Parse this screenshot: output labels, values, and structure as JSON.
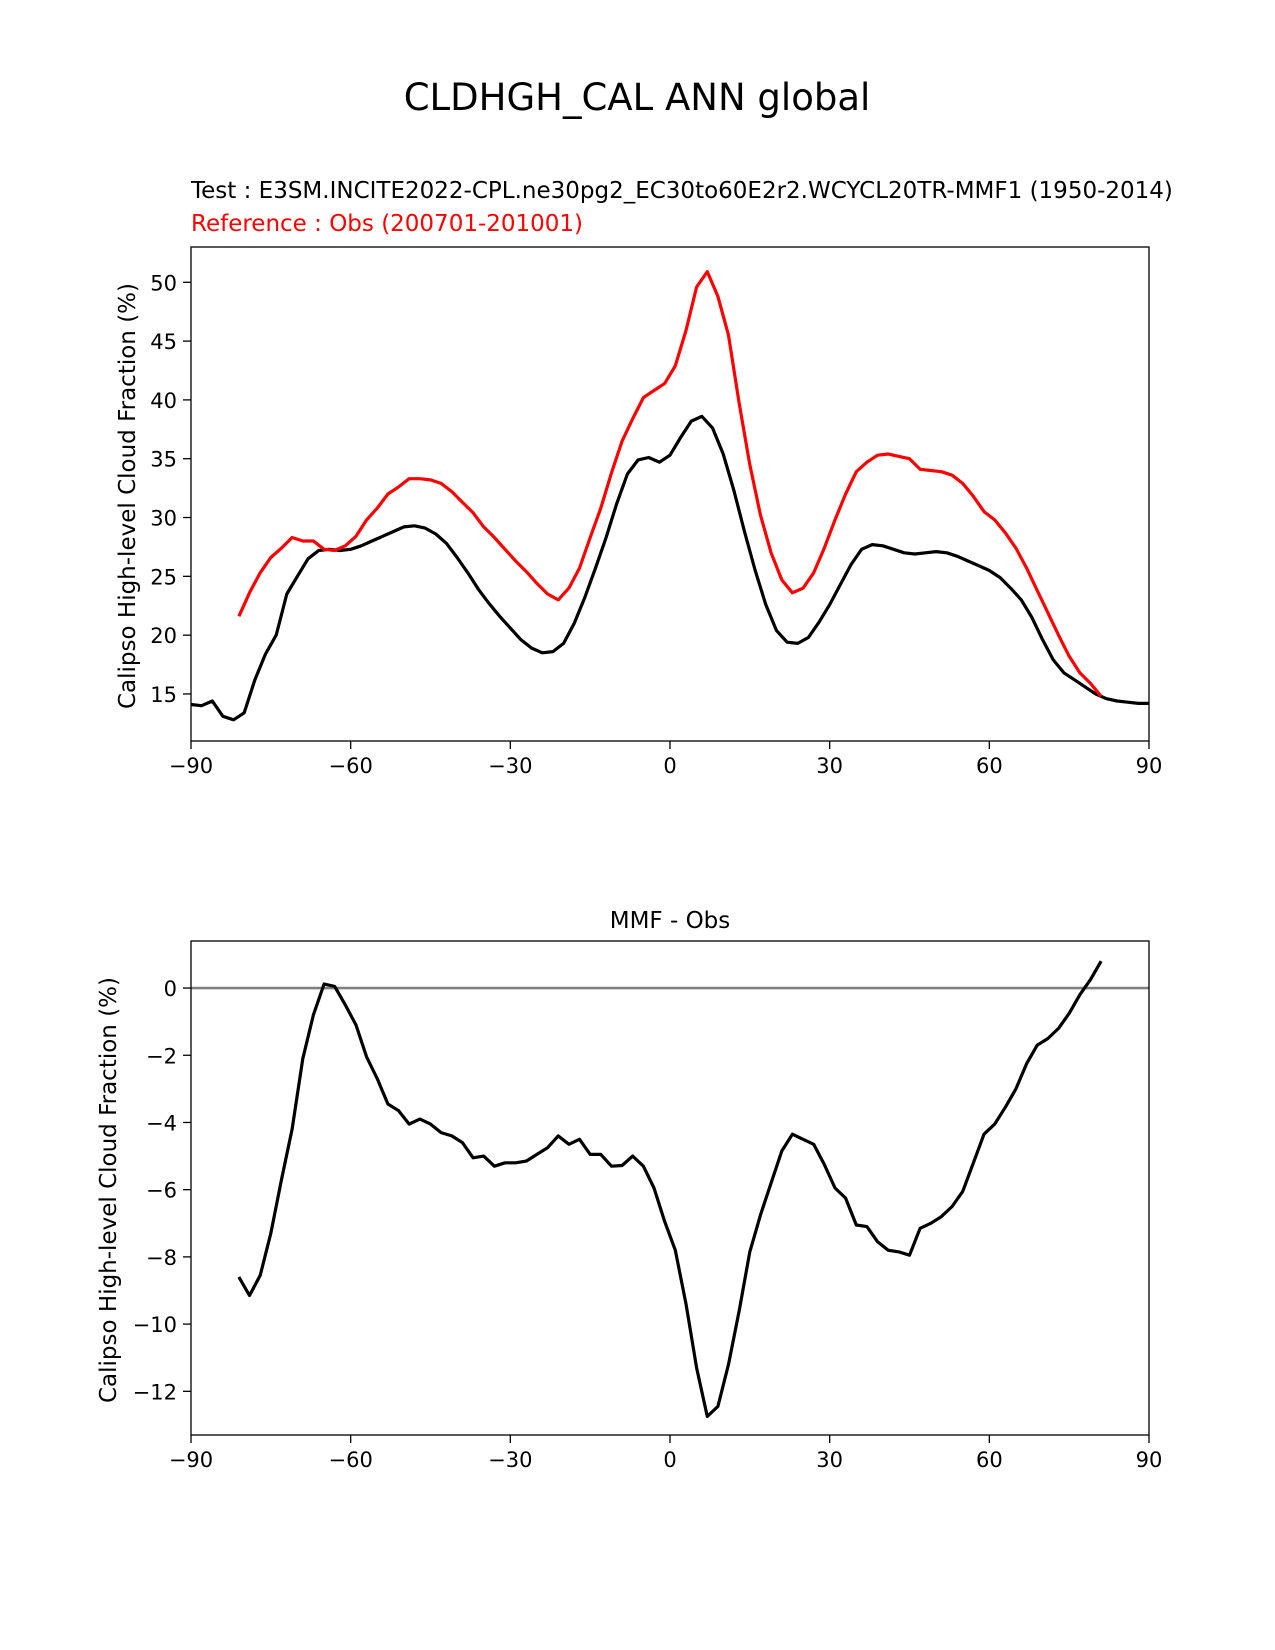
{
  "figure": {
    "title": "CLDHGH_CAL ANN global"
  },
  "chart_data": [
    {
      "type": "line",
      "subtitle_test": "Test : E3SM.INCITE2022-CPL.ne30pg2_EC30to60E2r2.WCYCL20TR-MMF1 (1950-2014)",
      "subtitle_reference": "Reference : Obs (200701-201001)",
      "xlabel": "",
      "ylabel": "Calipso High-level Cloud Fraction (%)",
      "xlim": [
        -90,
        90
      ],
      "ylim": [
        11,
        53
      ],
      "xticks": [
        -90,
        -60,
        -30,
        0,
        30,
        60,
        90
      ],
      "xtick_labels": [
        "−90",
        "−60",
        "−30",
        "0",
        "30",
        "60",
        "90"
      ],
      "yticks": [
        15,
        20,
        25,
        30,
        35,
        40,
        45,
        50
      ],
      "ytick_labels": [
        "15",
        "20",
        "25",
        "30",
        "35",
        "40",
        "45",
        "50"
      ],
      "series": [
        {
          "name": "Test (MMF)",
          "color": "#000000",
          "x": [
            -90,
            -88,
            -86,
            -84,
            -82,
            -80,
            -78,
            -76,
            -74,
            -72,
            -70,
            -68,
            -66,
            -64,
            -62,
            -60,
            -58,
            -56,
            -54,
            -52,
            -50,
            -48,
            -46,
            -44,
            -42,
            -40,
            -38,
            -36,
            -34,
            -32,
            -30,
            -28,
            -26,
            -24,
            -22,
            -20,
            -18,
            -16,
            -14,
            -12,
            -10,
            -8,
            -6,
            -4,
            -2,
            0,
            2,
            4,
            6,
            8,
            10,
            12,
            14,
            16,
            18,
            20,
            22,
            24,
            26,
            28,
            30,
            32,
            34,
            36,
            38,
            40,
            42,
            44,
            46,
            48,
            50,
            52,
            54,
            56,
            58,
            60,
            62,
            64,
            66,
            68,
            70,
            72,
            74,
            76,
            78,
            80,
            82,
            84,
            86,
            88,
            90
          ],
          "values": [
            14.1,
            14.0,
            14.4,
            13.1,
            12.8,
            13.4,
            16.2,
            18.4,
            20.0,
            23.5,
            25.0,
            26.5,
            27.2,
            27.3,
            27.2,
            27.3,
            27.6,
            28.0,
            28.4,
            28.8,
            29.2,
            29.3,
            29.1,
            28.6,
            27.8,
            26.6,
            25.3,
            23.9,
            22.7,
            21.6,
            20.6,
            19.6,
            18.9,
            18.5,
            18.6,
            19.3,
            21.0,
            23.2,
            25.7,
            28.3,
            31.2,
            33.7,
            34.9,
            35.1,
            34.7,
            35.3,
            36.8,
            38.2,
            38.6,
            37.6,
            35.4,
            32.3,
            28.8,
            25.5,
            22.6,
            20.4,
            19.4,
            19.3,
            19.8,
            21.1,
            22.6,
            24.3,
            26.0,
            27.3,
            27.7,
            27.6,
            27.3,
            27.0,
            26.9,
            27.0,
            27.1,
            27.0,
            26.7,
            26.3,
            25.9,
            25.5,
            24.9,
            24.0,
            23.0,
            21.5,
            19.6,
            17.9,
            16.8,
            16.2,
            15.6,
            15.0,
            14.6,
            14.4,
            14.3,
            14.2,
            14.2
          ]
        },
        {
          "name": "Reference (Obs)",
          "color": "#ff0000",
          "x": [
            -81,
            -79,
            -77,
            -75,
            -73,
            -71,
            -69,
            -67,
            -65,
            -63,
            -61,
            -59,
            -57,
            -55,
            -53,
            -51,
            -49,
            -47,
            -45,
            -43,
            -41,
            -39,
            -37,
            -35,
            -33,
            -31,
            -29,
            -27,
            -25,
            -23,
            -21,
            -19,
            -17,
            -15,
            -13,
            -11,
            -9,
            -7,
            -5,
            -3,
            -1,
            1,
            3,
            5,
            7,
            9,
            11,
            13,
            15,
            17,
            19,
            21,
            23,
            25,
            27,
            29,
            31,
            33,
            35,
            37,
            39,
            41,
            43,
            45,
            47,
            49,
            51,
            53,
            55,
            57,
            59,
            61,
            63,
            65,
            67,
            69,
            71,
            73,
            75,
            77,
            79,
            81
          ],
          "values": [
            21.6,
            23.6,
            25.3,
            26.6,
            27.4,
            28.3,
            28.0,
            28.0,
            27.3,
            27.2,
            27.6,
            28.4,
            29.8,
            30.8,
            32.0,
            32.6,
            33.3,
            33.3,
            33.2,
            32.9,
            32.2,
            31.3,
            30.4,
            29.2,
            28.3,
            27.3,
            26.3,
            25.4,
            24.4,
            23.5,
            23.0,
            24.0,
            25.7,
            28.3,
            30.8,
            33.8,
            36.5,
            38.4,
            40.2,
            40.8,
            41.4,
            42.9,
            45.9,
            49.6,
            50.9,
            48.8,
            45.5,
            39.7,
            34.5,
            30.2,
            27.0,
            24.7,
            23.6,
            24.0,
            25.3,
            27.4,
            29.8,
            32.0,
            33.9,
            34.7,
            35.3,
            35.4,
            35.2,
            35.0,
            34.1,
            34.0,
            33.9,
            33.6,
            32.9,
            31.8,
            30.5,
            29.8,
            28.7,
            27.4,
            25.7,
            23.8,
            21.9,
            20.0,
            18.2,
            16.8,
            15.9,
            14.8
          ]
        }
      ]
    },
    {
      "type": "line",
      "title": "MMF - Obs",
      "xlabel": "",
      "ylabel": "Calipso High-level Cloud Fraction (%)",
      "xlim": [
        -90,
        90
      ],
      "ylim": [
        -13.3,
        1.4
      ],
      "xticks": [
        -90,
        -60,
        -30,
        0,
        30,
        60,
        90
      ],
      "xtick_labels": [
        "−90",
        "−60",
        "−30",
        "0",
        "30",
        "60",
        "90"
      ],
      "yticks": [
        -12,
        -10,
        -8,
        -6,
        -4,
        -2,
        0
      ],
      "ytick_labels": [
        "−12",
        "−10",
        "−8",
        "−6",
        "−4",
        "−2",
        "0"
      ],
      "zero_line": {
        "y": 0,
        "color": "#808080"
      },
      "series": [
        {
          "name": "MMF - Obs",
          "color": "#000000",
          "x": [
            -81,
            -79,
            -77,
            -75,
            -73,
            -71,
            -69,
            -67,
            -65,
            -63,
            -61,
            -59,
            -57,
            -55,
            -53,
            -51,
            -49,
            -47,
            -45,
            -43,
            -41,
            -39,
            -37,
            -35,
            -33,
            -31,
            -29,
            -27,
            -25,
            -23,
            -21,
            -19,
            -17,
            -15,
            -13,
            -11,
            -9,
            -7,
            -5,
            -3,
            -1,
            1,
            3,
            5,
            7,
            9,
            11,
            13,
            15,
            17,
            19,
            21,
            23,
            25,
            27,
            29,
            31,
            33,
            35,
            37,
            39,
            41,
            43,
            45,
            47,
            49,
            51,
            53,
            55,
            57,
            59,
            61,
            63,
            65,
            67,
            69,
            71,
            73,
            75,
            77,
            79,
            81
          ],
          "values": [
            -8.6,
            -9.15,
            -8.55,
            -7.3,
            -5.7,
            -4.2,
            -2.1,
            -0.8,
            0.12,
            0.05,
            -0.5,
            -1.1,
            -2.05,
            -2.7,
            -3.45,
            -3.65,
            -4.05,
            -3.9,
            -4.05,
            -4.3,
            -4.4,
            -4.6,
            -5.05,
            -5.0,
            -5.3,
            -5.2,
            -5.2,
            -5.15,
            -4.95,
            -4.75,
            -4.4,
            -4.65,
            -4.5,
            -4.95,
            -4.95,
            -5.3,
            -5.28,
            -5.0,
            -5.3,
            -5.95,
            -6.95,
            -7.8,
            -9.4,
            -11.3,
            -12.75,
            -12.45,
            -11.2,
            -9.6,
            -7.85,
            -6.75,
            -5.8,
            -4.85,
            -4.35,
            -4.5,
            -4.65,
            -5.25,
            -5.95,
            -6.25,
            -7.05,
            -7.1,
            -7.55,
            -7.8,
            -7.85,
            -7.95,
            -7.15,
            -7.0,
            -6.8,
            -6.5,
            -6.05,
            -5.2,
            -4.35,
            -4.05,
            -3.55,
            -3.0,
            -2.25,
            -1.7,
            -1.5,
            -1.2,
            -0.75,
            -0.2,
            0.25,
            0.8
          ]
        }
      ]
    }
  ]
}
